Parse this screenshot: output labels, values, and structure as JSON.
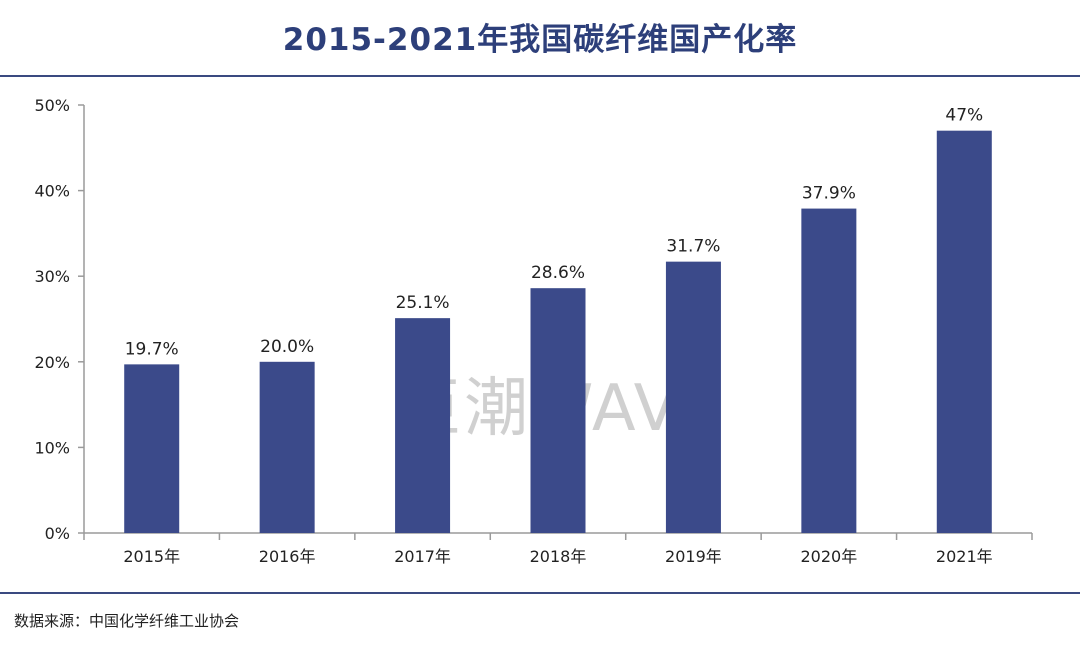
{
  "header": {
    "title": "2015-2021年我国碳纤维国产化率"
  },
  "chart_data": {
    "type": "bar",
    "categories": [
      "2015年",
      "2016年",
      "2017年",
      "2018年",
      "2019年",
      "2020年",
      "2021年"
    ],
    "values": [
      19.7,
      20.0,
      25.1,
      28.6,
      31.7,
      37.9,
      47
    ],
    "data_labels": [
      "19.7%",
      "20.0%",
      "25.1%",
      "28.6%",
      "31.7%",
      "37.9%",
      "47%"
    ],
    "title": "2015-2021年我国碳纤维国产化率",
    "xlabel": "",
    "ylabel": "",
    "ylim": [
      0,
      50
    ],
    "y_ticks": [
      0,
      10,
      20,
      30,
      40,
      50
    ],
    "y_tick_labels": [
      "0%",
      "10%",
      "20%",
      "30%",
      "40%",
      "50%"
    ],
    "grid": false,
    "legend": "none",
    "bar_color": "#3b4a8a",
    "axis_color": "#9a9a9a"
  },
  "watermark": {
    "text": "巨潮WAVE"
  },
  "footer": {
    "source": "数据来源：中国化学纤维工业协会"
  }
}
